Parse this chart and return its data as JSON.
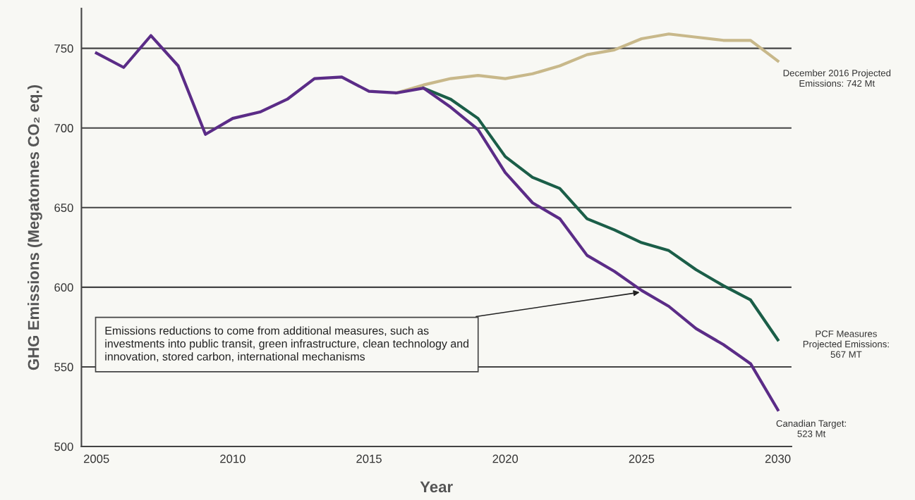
{
  "chart_data": {
    "type": "line",
    "xlabel": "Year",
    "ylabel": "GHG Emissions (Megatonnes CO₂ eq.)",
    "xlim": [
      2004.45,
      2030.5
    ],
    "xticks": [
      2005,
      2010,
      2015,
      2020,
      2025,
      2030
    ],
    "ylim": [
      500,
      775
    ],
    "yticks": [
      500,
      550,
      600,
      650,
      700,
      750
    ],
    "grid": "y",
    "marker": "none",
    "line_style": "solid",
    "series": [
      {
        "color": "#c8b88a",
        "x": [
          2016,
          2017,
          2018,
          2019,
          2020,
          2021,
          2022,
          2023,
          2024,
          2025,
          2026,
          2027,
          2028,
          2029,
          2030
        ],
        "values": [
          722,
          727,
          731,
          733,
          731,
          734,
          739,
          746,
          749,
          756,
          759,
          757,
          755,
          755,
          742
        ]
      },
      {
        "color": "#1b5e48",
        "x": [
          2017,
          2018,
          2019,
          2020,
          2021,
          2022,
          2023,
          2024,
          2025,
          2026,
          2027,
          2028,
          2029,
          2030
        ],
        "values": [
          725,
          718,
          706,
          682,
          669,
          662,
          643,
          636,
          628,
          623,
          611,
          601,
          592,
          567
        ]
      },
      {
        "color": "#5b2c87",
        "x": [
          2005,
          2006,
          2007,
          2008,
          2009,
          2010,
          2011,
          2012,
          2013,
          2014,
          2015,
          2016,
          2017,
          2018,
          2019,
          2020,
          2021,
          2022,
          2023,
          2024,
          2025,
          2026,
          2027,
          2028,
          2029,
          2030
        ],
        "values": [
          747,
          738,
          758,
          739,
          696,
          706,
          710,
          718,
          731,
          732,
          723,
          722,
          725,
          713,
          699,
          672,
          653,
          643,
          620,
          610,
          598,
          588,
          574,
          564,
          552,
          523
        ]
      }
    ],
    "annotations": [
      "December 2016 Projected\nEmissions: 742 Mt",
      "PCF Measures\nProjected Emissions:\n567 MT",
      "Canadian Target:\n523 Mt",
      {
        "text": "Emissions reductions to come from additional measures, such as\ninvestments into public transit, green infrastructure, clean technology and\ninnovation, stored carbon, international mechanisms",
        "x": 2025,
        "y": 597
      }
    ]
  }
}
